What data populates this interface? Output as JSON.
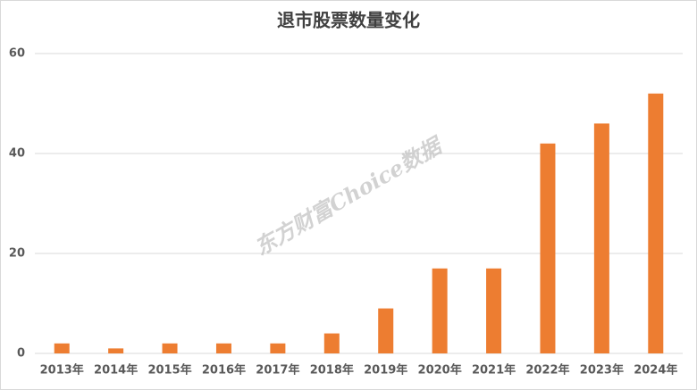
{
  "chart_data": {
    "type": "bar",
    "title": "退市股票数量变化",
    "categories": [
      "2013年",
      "2014年",
      "2015年",
      "2016年",
      "2017年",
      "2018年",
      "2019年",
      "2020年",
      "2021年",
      "2022年",
      "2023年",
      "2024年"
    ],
    "values": [
      2,
      1,
      2,
      2,
      2,
      4,
      9,
      17,
      17,
      42,
      46,
      52
    ],
    "color": "#ed7d31",
    "ylim": [
      0,
      60
    ],
    "yticks": [
      0,
      20,
      40,
      60
    ],
    "grid": true,
    "watermark": "东方财富Choice数据"
  }
}
